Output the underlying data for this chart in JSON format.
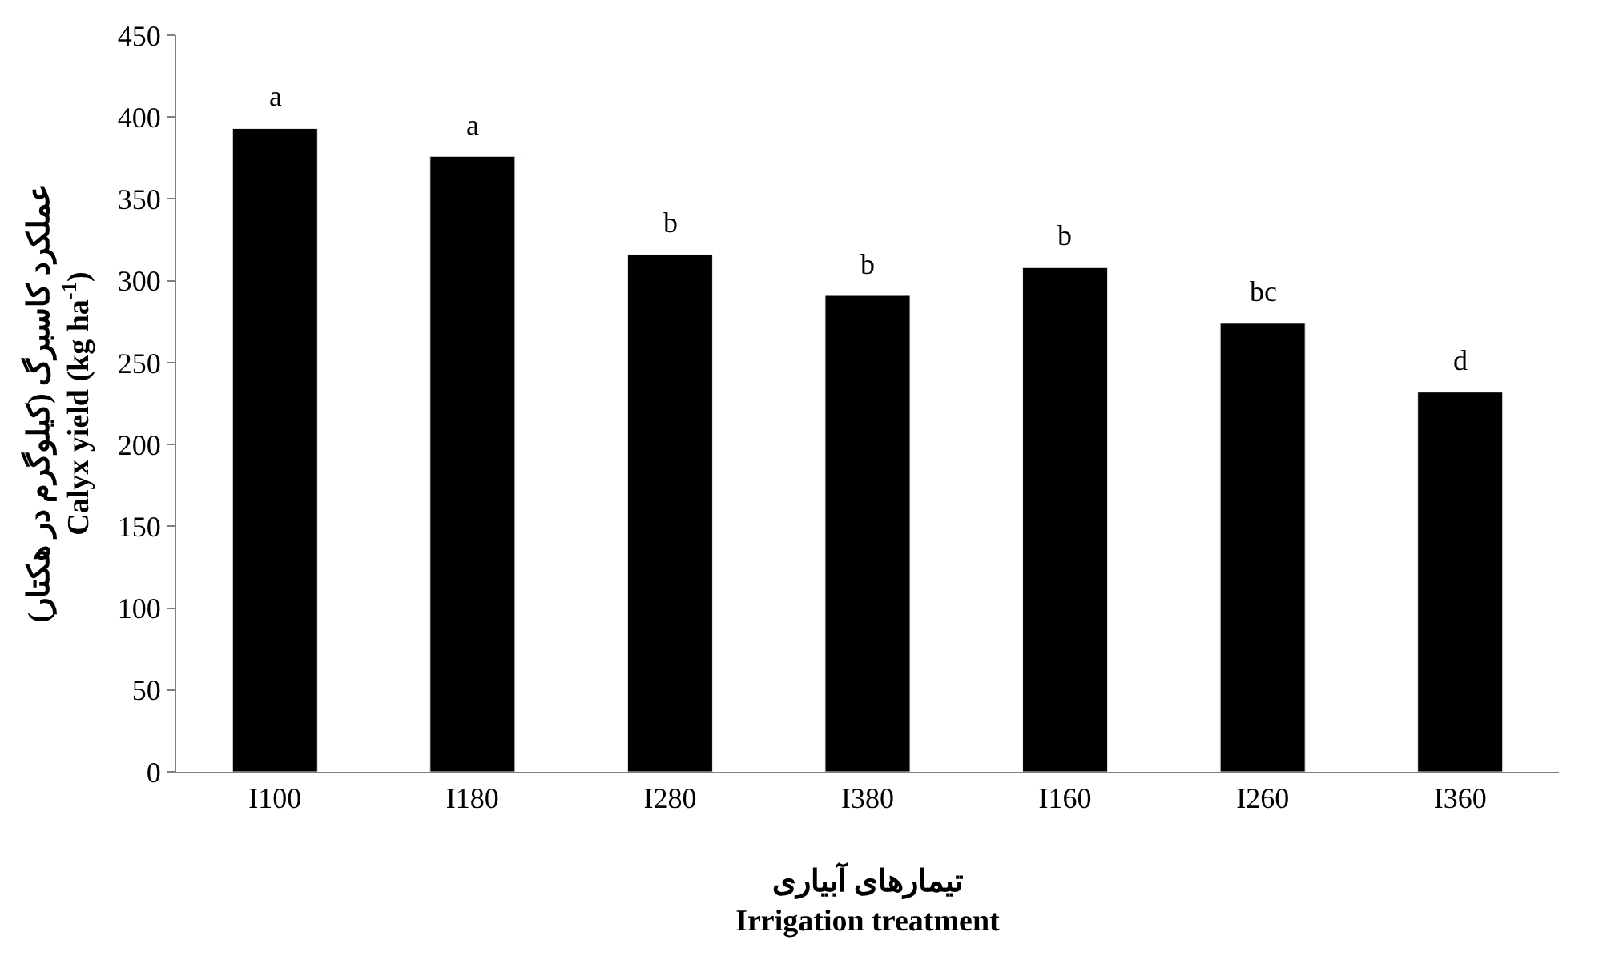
{
  "chart_data": {
    "type": "bar",
    "categories": [
      "I100",
      "I180",
      "I280",
      "I380",
      "I160",
      "I260",
      "I360"
    ],
    "values": [
      393,
      376,
      316,
      291,
      308,
      274,
      232
    ],
    "color": "#000000",
    "xlabel": "تیمارهای آبیاری\nIrrigation treatment",
    "ylabel": "عملکرد کاسبرگ (کیلوگرم در هکتار)\nCalyx yield (kg ha$^{-1}$)",
    "ylim": [
      0,
      450
    ],
    "yticks": [
      0,
      50,
      100,
      150,
      200,
      250,
      300,
      350,
      400,
      450
    ],
    "annotations": [
      {
        "text": "a",
        "x": "I100",
        "y": 393
      },
      {
        "text": "a",
        "x": "I180",
        "y": 376
      },
      {
        "text": "b",
        "x": "I280",
        "y": 316
      },
      {
        "text": "b",
        "x": "I380",
        "y": 291
      },
      {
        "text": "b",
        "x": "I160",
        "y": 308
      },
      {
        "text": "bc",
        "x": "I260",
        "y": 274
      },
      {
        "text": "d",
        "x": "I360",
        "y": 232
      }
    ]
  }
}
